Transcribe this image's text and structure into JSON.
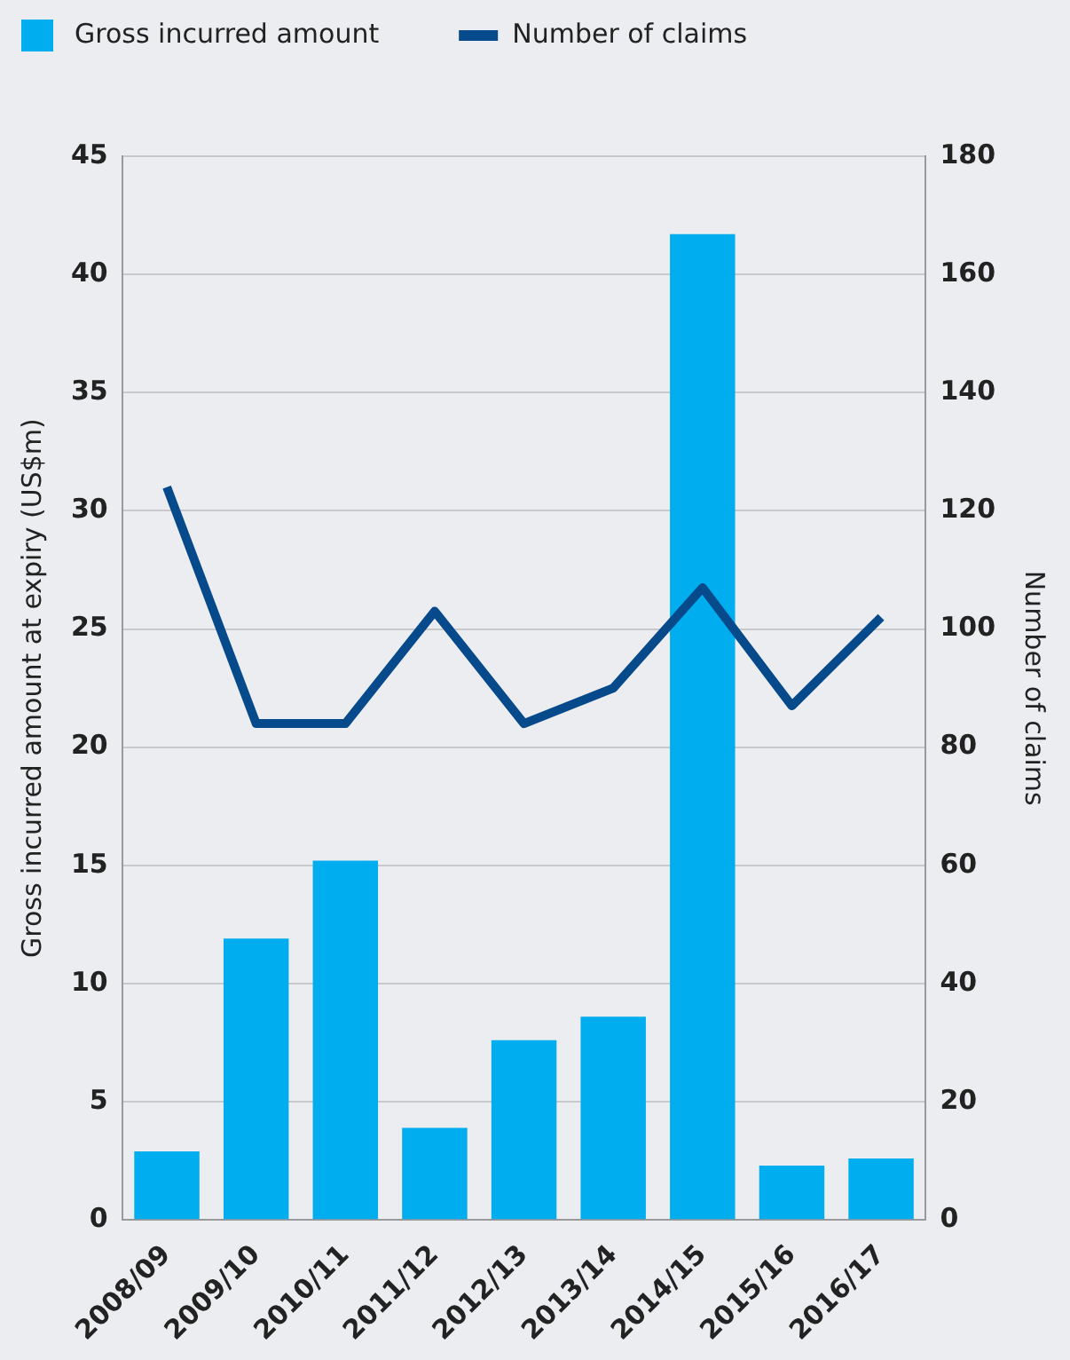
{
  "chart_data": {
    "type": "bar",
    "categories": [
      "2008/09",
      "2009/10",
      "2010/11",
      "2011/12",
      "2012/13",
      "2013/14",
      "2014/15",
      "2015/16",
      "2016/17"
    ],
    "series": [
      {
        "name": "Gross incurred amount",
        "color": "#00adee",
        "values": [
          2.9,
          11.9,
          15.2,
          3.9,
          7.6,
          8.6,
          41.7,
          2.3,
          2.6
        ]
      },
      {
        "name": "Number of claims",
        "type": "line",
        "axis": "y2",
        "color": "#064a8c",
        "values": [
          124,
          84,
          84,
          103,
          84,
          90,
          107,
          87,
          102
        ]
      }
    ],
    "ylabel": "Gross incurred amount at expiry (US$m)",
    "y2label": "Number of claims",
    "ylim": [
      0,
      45
    ],
    "yticks": [
      0,
      5,
      10,
      15,
      20,
      25,
      30,
      35,
      40,
      45
    ],
    "y2lim": [
      0,
      180
    ],
    "y2ticks": [
      0,
      20,
      40,
      60,
      80,
      100,
      120,
      140,
      160,
      180
    ],
    "grid": "y",
    "legend": "top left",
    "marker": "none"
  }
}
